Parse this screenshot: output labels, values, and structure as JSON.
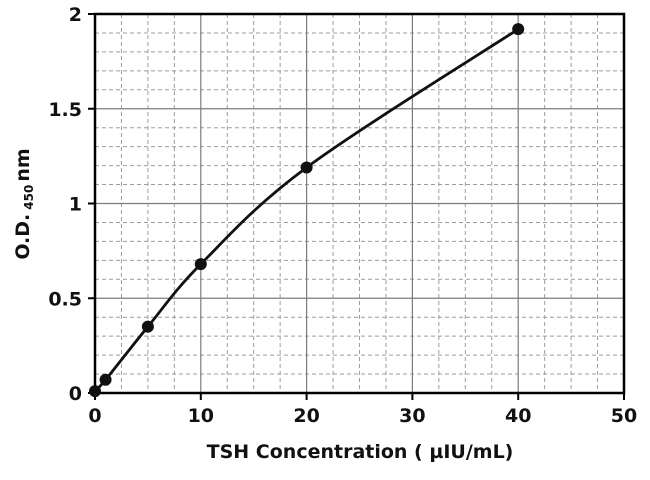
{
  "chart_data": {
    "type": "line",
    "title": "",
    "xlabel": "TSH Concentration ( µIU/mL)",
    "ylabel_main": "O.D.",
    "ylabel_sub": "450",
    "ylabel_unit": "nm",
    "x": [
      0,
      1,
      5,
      10,
      20,
      40
    ],
    "y": [
      0.01,
      0.07,
      0.35,
      0.68,
      1.19,
      1.92
    ],
    "xlim": [
      0,
      50
    ],
    "ylim": [
      0,
      2
    ],
    "xticks": [
      0,
      10,
      20,
      30,
      40,
      50
    ],
    "yticks": [
      0,
      0.5,
      1,
      1.5,
      2
    ],
    "x_minor_step": 2.5,
    "y_minor_step": 0.1,
    "grid": "dashed minor grid with solid major grid",
    "legend_position": "none",
    "line_color": "#111111",
    "marker": "filled-circle",
    "marker_color": "#111111",
    "grid_minor_color": "#9d9d9d",
    "grid_major_color": "#7c7c7c",
    "border_color": "#000000"
  }
}
